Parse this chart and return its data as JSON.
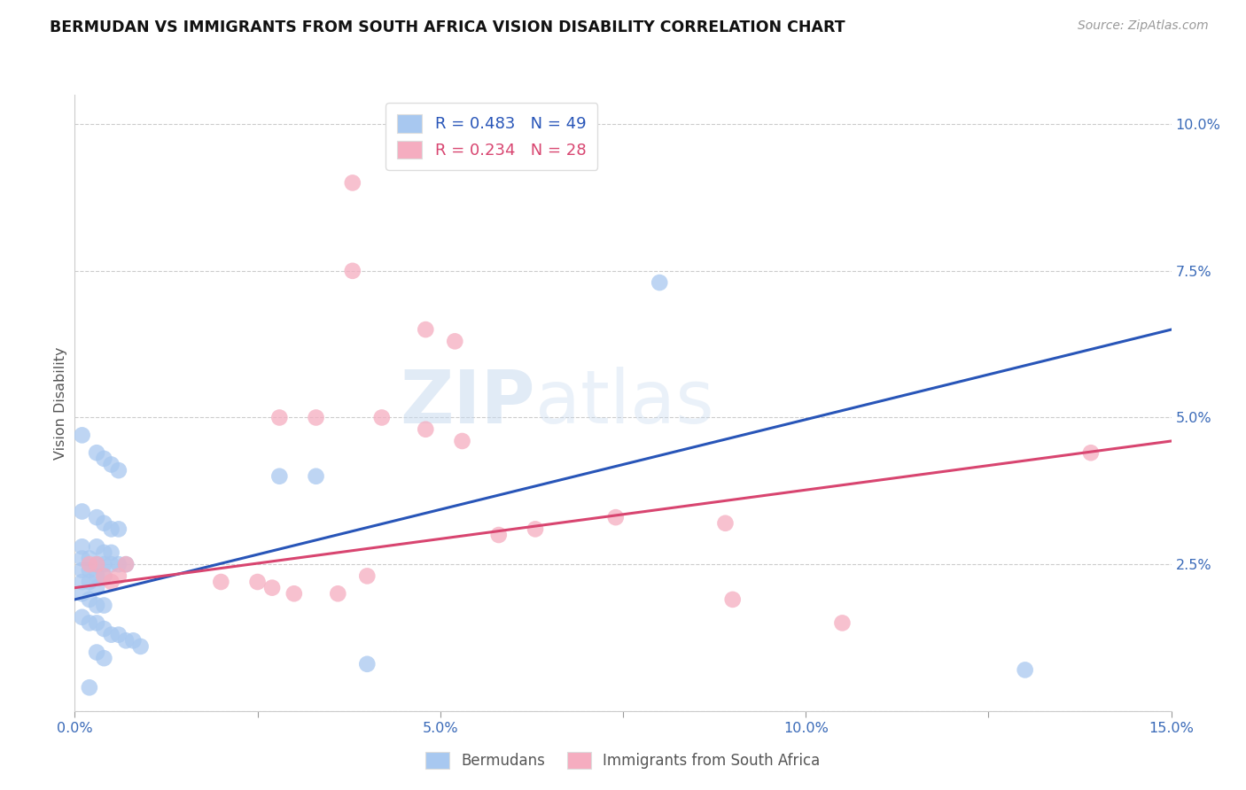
{
  "title": "BERMUDAN VS IMMIGRANTS FROM SOUTH AFRICA VISION DISABILITY CORRELATION CHART",
  "source": "Source: ZipAtlas.com",
  "ylabel": "Vision Disability",
  "xlim": [
    0.0,
    0.15
  ],
  "ylim": [
    0.0,
    0.105
  ],
  "xticks": [
    0.0,
    0.025,
    0.05,
    0.075,
    0.1,
    0.125,
    0.15
  ],
  "yticks": [
    0.0,
    0.025,
    0.05,
    0.075,
    0.1
  ],
  "xticklabels": [
    "0.0%",
    "",
    "5.0%",
    "",
    "10.0%",
    "",
    "15.0%"
  ],
  "yticklabels_right": [
    "",
    "2.5%",
    "5.0%",
    "7.5%",
    "10.0%"
  ],
  "blue_R": "0.483",
  "blue_N": "49",
  "pink_R": "0.234",
  "pink_N": "28",
  "blue_color": "#a8c8f0",
  "pink_color": "#f5adc0",
  "blue_line_color": "#2855b8",
  "pink_line_color": "#d84570",
  "legend_label_blue": "Bermudans",
  "legend_label_pink": "Immigrants from South Africa",
  "watermark_text": "ZIPatlas",
  "blue_points": [
    [
      0.001,
      0.047
    ],
    [
      0.003,
      0.044
    ],
    [
      0.004,
      0.043
    ],
    [
      0.005,
      0.042
    ],
    [
      0.006,
      0.041
    ],
    [
      0.001,
      0.034
    ],
    [
      0.003,
      0.033
    ],
    [
      0.004,
      0.032
    ],
    [
      0.005,
      0.031
    ],
    [
      0.006,
      0.031
    ],
    [
      0.001,
      0.028
    ],
    [
      0.003,
      0.028
    ],
    [
      0.004,
      0.027
    ],
    [
      0.005,
      0.027
    ],
    [
      0.001,
      0.026
    ],
    [
      0.002,
      0.026
    ],
    [
      0.003,
      0.025
    ],
    [
      0.004,
      0.025
    ],
    [
      0.005,
      0.025
    ],
    [
      0.006,
      0.025
    ],
    [
      0.007,
      0.025
    ],
    [
      0.001,
      0.024
    ],
    [
      0.002,
      0.024
    ],
    [
      0.003,
      0.023
    ],
    [
      0.004,
      0.023
    ],
    [
      0.001,
      0.022
    ],
    [
      0.002,
      0.022
    ],
    [
      0.003,
      0.021
    ],
    [
      0.001,
      0.02
    ],
    [
      0.002,
      0.019
    ],
    [
      0.003,
      0.018
    ],
    [
      0.004,
      0.018
    ],
    [
      0.001,
      0.016
    ],
    [
      0.002,
      0.015
    ],
    [
      0.003,
      0.015
    ],
    [
      0.004,
      0.014
    ],
    [
      0.005,
      0.013
    ],
    [
      0.006,
      0.013
    ],
    [
      0.007,
      0.012
    ],
    [
      0.008,
      0.012
    ],
    [
      0.009,
      0.011
    ],
    [
      0.003,
      0.01
    ],
    [
      0.004,
      0.009
    ],
    [
      0.028,
      0.04
    ],
    [
      0.033,
      0.04
    ],
    [
      0.04,
      0.008
    ],
    [
      0.08,
      0.073
    ],
    [
      0.002,
      0.004
    ],
    [
      0.13,
      0.007
    ]
  ],
  "pink_points": [
    [
      0.002,
      0.025
    ],
    [
      0.003,
      0.025
    ],
    [
      0.004,
      0.023
    ],
    [
      0.005,
      0.022
    ],
    [
      0.006,
      0.023
    ],
    [
      0.007,
      0.025
    ],
    [
      0.02,
      0.022
    ],
    [
      0.025,
      0.022
    ],
    [
      0.027,
      0.021
    ],
    [
      0.03,
      0.02
    ],
    [
      0.028,
      0.05
    ],
    [
      0.033,
      0.05
    ],
    [
      0.036,
      0.02
    ],
    [
      0.04,
      0.023
    ],
    [
      0.042,
      0.05
    ],
    [
      0.048,
      0.048
    ],
    [
      0.048,
      0.065
    ],
    [
      0.053,
      0.046
    ],
    [
      0.058,
      0.03
    ],
    [
      0.063,
      0.031
    ],
    [
      0.074,
      0.033
    ],
    [
      0.089,
      0.032
    ],
    [
      0.09,
      0.019
    ],
    [
      0.038,
      0.075
    ],
    [
      0.038,
      0.09
    ],
    [
      0.052,
      0.063
    ],
    [
      0.139,
      0.044
    ],
    [
      0.105,
      0.015
    ]
  ],
  "blue_line_x": [
    0.0,
    0.15
  ],
  "blue_line_y": [
    0.019,
    0.065
  ],
  "pink_line_x": [
    0.0,
    0.15
  ],
  "pink_line_y": [
    0.021,
    0.046
  ]
}
